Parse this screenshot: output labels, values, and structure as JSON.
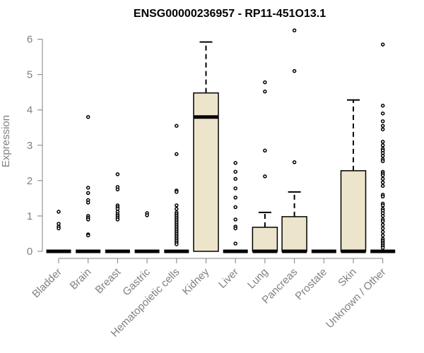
{
  "chart_data": {
    "type": "boxplot",
    "title": "ENSG00000236957 - RP11-451O13.1",
    "ylabel": "Expression",
    "ylim": [
      0,
      6.25
    ],
    "yticks": [
      0,
      1,
      2,
      3,
      4,
      5,
      6
    ],
    "grid": false,
    "box_color": "#ede5cb",
    "categories": [
      "Bladder",
      "Brain",
      "Breast",
      "Gastric",
      "Hematopoietic cells",
      "Kidney",
      "Liver",
      "Lung",
      "Pancreas",
      "Prostate",
      "Skin",
      "Unknown / Other"
    ],
    "boxes": [
      {
        "q1": 0,
        "median": 0,
        "q3": 0,
        "whisker_low": 0,
        "whisker_high": 0,
        "outliers": [
          1.12,
          0.78,
          0.7,
          0.65
        ]
      },
      {
        "q1": 0,
        "median": 0,
        "q3": 0,
        "whisker_low": 0,
        "whisker_high": 0,
        "outliers": [
          3.8,
          1.8,
          1.65,
          1.45,
          1.38,
          1.0,
          0.95,
          0.9,
          0.48,
          0.45
        ]
      },
      {
        "q1": 0,
        "median": 0,
        "q3": 0,
        "whisker_low": 0,
        "whisker_high": 0,
        "outliers": [
          2.18,
          1.82,
          1.75,
          1.3,
          1.25,
          1.2,
          1.12,
          1.05,
          1.0,
          0.95,
          0.9
        ]
      },
      {
        "q1": 0,
        "median": 0,
        "q3": 0,
        "whisker_low": 0,
        "whisker_high": 0,
        "outliers": [
          1.08,
          1.02
        ]
      },
      {
        "q1": 0,
        "median": 0,
        "q3": 0,
        "whisker_low": 0,
        "whisker_high": 0,
        "outliers": [
          3.55,
          2.75,
          1.72,
          1.68,
          1.3,
          1.2,
          1.1,
          1.05,
          1.0,
          0.95,
          0.9,
          0.85,
          0.8,
          0.75,
          0.7,
          0.65,
          0.6,
          0.55,
          0.5,
          0.45,
          0.4,
          0.35,
          0.3,
          0.25,
          0.2
        ]
      },
      {
        "q1": 0,
        "median": 3.8,
        "q3": 4.48,
        "whisker_low": 0,
        "whisker_high": 5.92,
        "outliers": []
      },
      {
        "q1": 0,
        "median": 0,
        "q3": 0,
        "whisker_low": 0,
        "whisker_high": 0,
        "outliers": [
          2.5,
          2.25,
          2.05,
          1.78,
          1.52,
          1.25,
          0.9,
          0.7,
          0.65,
          0.22
        ]
      },
      {
        "q1": 0,
        "median": 0,
        "q3": 0.68,
        "whisker_low": 0,
        "whisker_high": 1.1,
        "outliers": [
          4.78,
          4.52,
          2.85,
          2.12
        ]
      },
      {
        "q1": 0,
        "median": 0,
        "q3": 0.98,
        "whisker_low": 0,
        "whisker_high": 1.68,
        "outliers": [
          6.25,
          5.1,
          2.52
        ]
      },
      {
        "q1": 0,
        "median": 0,
        "q3": 0,
        "whisker_low": 0,
        "whisker_high": 0,
        "outliers": []
      },
      {
        "q1": 0,
        "median": 0,
        "q3": 2.28,
        "whisker_low": 0,
        "whisker_high": 4.28,
        "outliers": []
      },
      {
        "q1": 0,
        "median": 0,
        "q3": 0,
        "whisker_low": 0,
        "whisker_high": 0,
        "outliers": [
          5.85,
          4.12,
          3.9,
          3.68,
          3.55,
          3.45,
          3.1,
          3.0,
          2.9,
          2.85,
          2.78,
          2.7,
          2.6,
          2.55,
          2.25,
          2.2,
          2.15,
          2.05,
          1.95,
          1.85,
          1.6,
          1.55,
          1.35,
          1.3,
          1.2,
          1.15,
          1.08,
          1.0,
          0.9,
          0.85,
          0.75,
          0.65,
          0.55,
          0.45,
          0.35,
          0.3,
          0.25,
          0.2,
          0.15,
          0.1
        ]
      }
    ]
  }
}
